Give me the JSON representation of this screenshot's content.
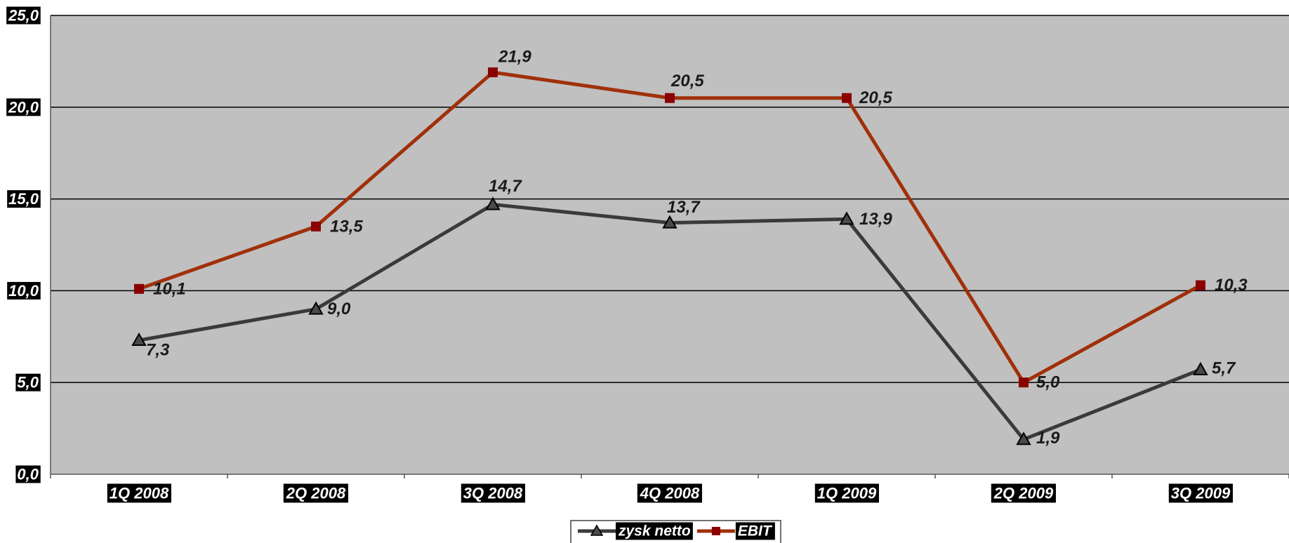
{
  "chart_data": {
    "type": "line",
    "categories": [
      "1Q 2008",
      "2Q 2008",
      "3Q 2008",
      "4Q 2008",
      "1Q 2009",
      "2Q 2009",
      "3Q 2009"
    ],
    "series": [
      {
        "name": "zysk netto",
        "values": [
          7.3,
          9.0,
          14.7,
          13.7,
          13.9,
          1.9,
          5.7
        ],
        "labels": [
          "7,3",
          "9,0",
          "14,7",
          "13,7",
          "13,9",
          "1,9",
          "5,7"
        ],
        "color": "#3a3a3a",
        "marker": "triangle",
        "marker_color": "#4a4a4a"
      },
      {
        "name": "EBIT",
        "values": [
          10.1,
          13.5,
          21.9,
          20.5,
          20.5,
          5.0,
          10.3
        ],
        "labels": [
          "10,1",
          "13,5",
          "21,9",
          "20,5",
          "20,5",
          "5,0",
          "10,3"
        ],
        "color": "#a0300a",
        "marker": "square",
        "marker_color": "#8b0000"
      }
    ],
    "yticks": [
      {
        "value": 0,
        "label": "0,0"
      },
      {
        "value": 5,
        "label": "5,0"
      },
      {
        "value": 10,
        "label": "10,0"
      },
      {
        "value": 15,
        "label": "15,0"
      },
      {
        "value": 20,
        "label": "20,0"
      },
      {
        "value": 25,
        "label": "25,0"
      }
    ],
    "ylim": [
      0,
      25
    ],
    "title": "",
    "xlabel": "",
    "ylabel": "",
    "grid": true,
    "legend": "bottom-center",
    "plot_background": "#c0c0c0"
  }
}
